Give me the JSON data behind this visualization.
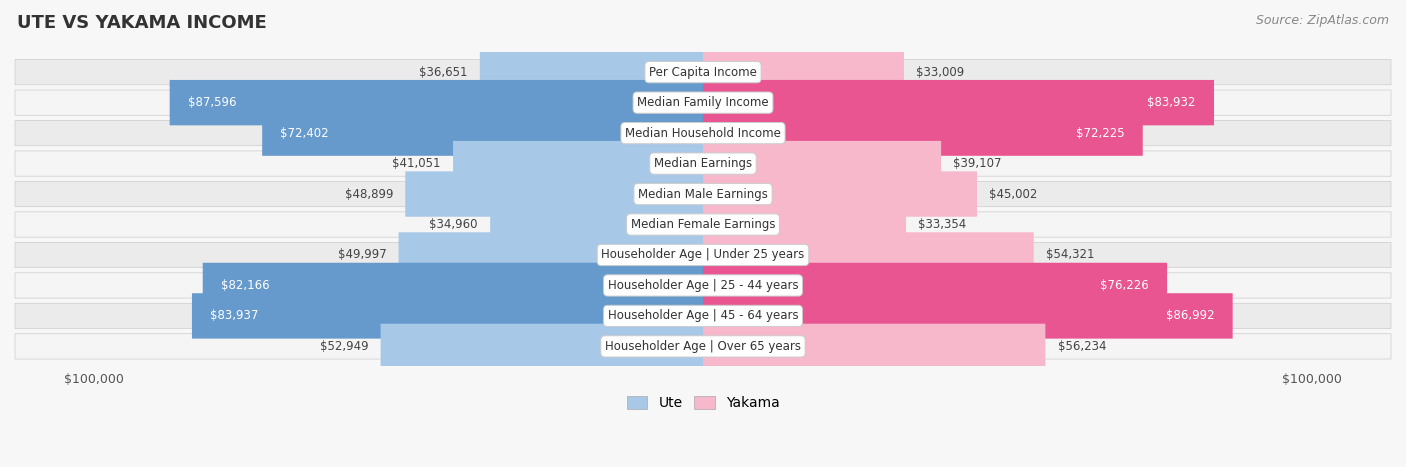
{
  "title": "UTE VS YAKAMA INCOME",
  "source": "Source: ZipAtlas.com",
  "categories": [
    "Per Capita Income",
    "Median Family Income",
    "Median Household Income",
    "Median Earnings",
    "Median Male Earnings",
    "Median Female Earnings",
    "Householder Age | Under 25 years",
    "Householder Age | 25 - 44 years",
    "Householder Age | 45 - 64 years",
    "Householder Age | Over 65 years"
  ],
  "ute_values": [
    36651,
    87596,
    72402,
    41051,
    48899,
    34960,
    49997,
    82166,
    83937,
    52949
  ],
  "yakama_values": [
    33009,
    83932,
    72225,
    39107,
    45002,
    33354,
    54321,
    76226,
    86992,
    56234
  ],
  "ute_labels": [
    "$36,651",
    "$87,596",
    "$72,402",
    "$41,051",
    "$48,899",
    "$34,960",
    "$49,997",
    "$82,166",
    "$83,937",
    "$52,949"
  ],
  "yakama_labels": [
    "$33,009",
    "$83,932",
    "$72,225",
    "$39,107",
    "$45,002",
    "$33,354",
    "$54,321",
    "$76,226",
    "$86,992",
    "$56,234"
  ],
  "max_value": 100000,
  "ute_color_light": "#a8c8e8",
  "ute_color_dark": "#6699cc",
  "yakama_color_light": "#f8b8cc",
  "yakama_color_dark": "#e85590",
  "background_color": "#f7f7f7",
  "row_bg_even": "#ebebeb",
  "row_bg_odd": "#f5f5f5",
  "title_fontsize": 13,
  "label_fontsize": 8.5,
  "value_fontsize": 8.5,
  "legend_fontsize": 10,
  "source_fontsize": 9,
  "threshold": 60000
}
